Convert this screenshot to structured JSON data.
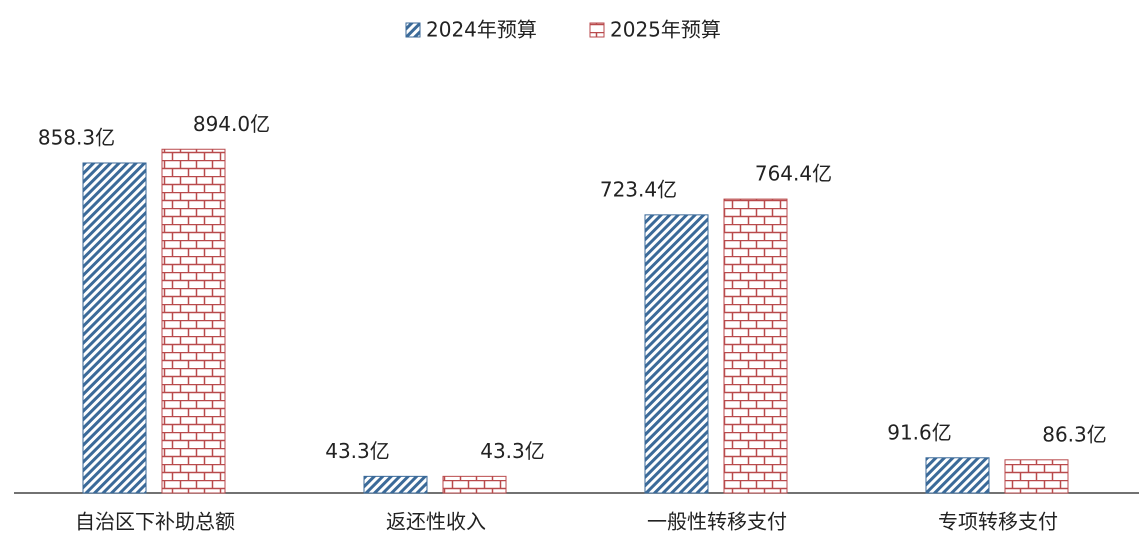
{
  "chart_data": {
    "type": "bar",
    "categories": [
      "自治区下补助总额",
      "返还性收入",
      "一般性转移支付",
      "专项转移支付"
    ],
    "series": [
      {
        "name": "2024年预算",
        "color": "#3b6a99",
        "values": [
          858.3,
          43.3,
          723.4,
          91.6
        ],
        "value_labels": [
          "858.3亿",
          "43.3亿",
          "723.4亿",
          "91.6亿"
        ]
      },
      {
        "name": "2025年预算",
        "color": "#b94a4c",
        "values": [
          894.0,
          43.3,
          764.4,
          86.3
        ],
        "value_labels": [
          "894.0亿",
          "43.3亿",
          "764.4亿",
          "86.3亿"
        ]
      }
    ],
    "ylim": [
      0,
      1000
    ],
    "legend": "top"
  }
}
